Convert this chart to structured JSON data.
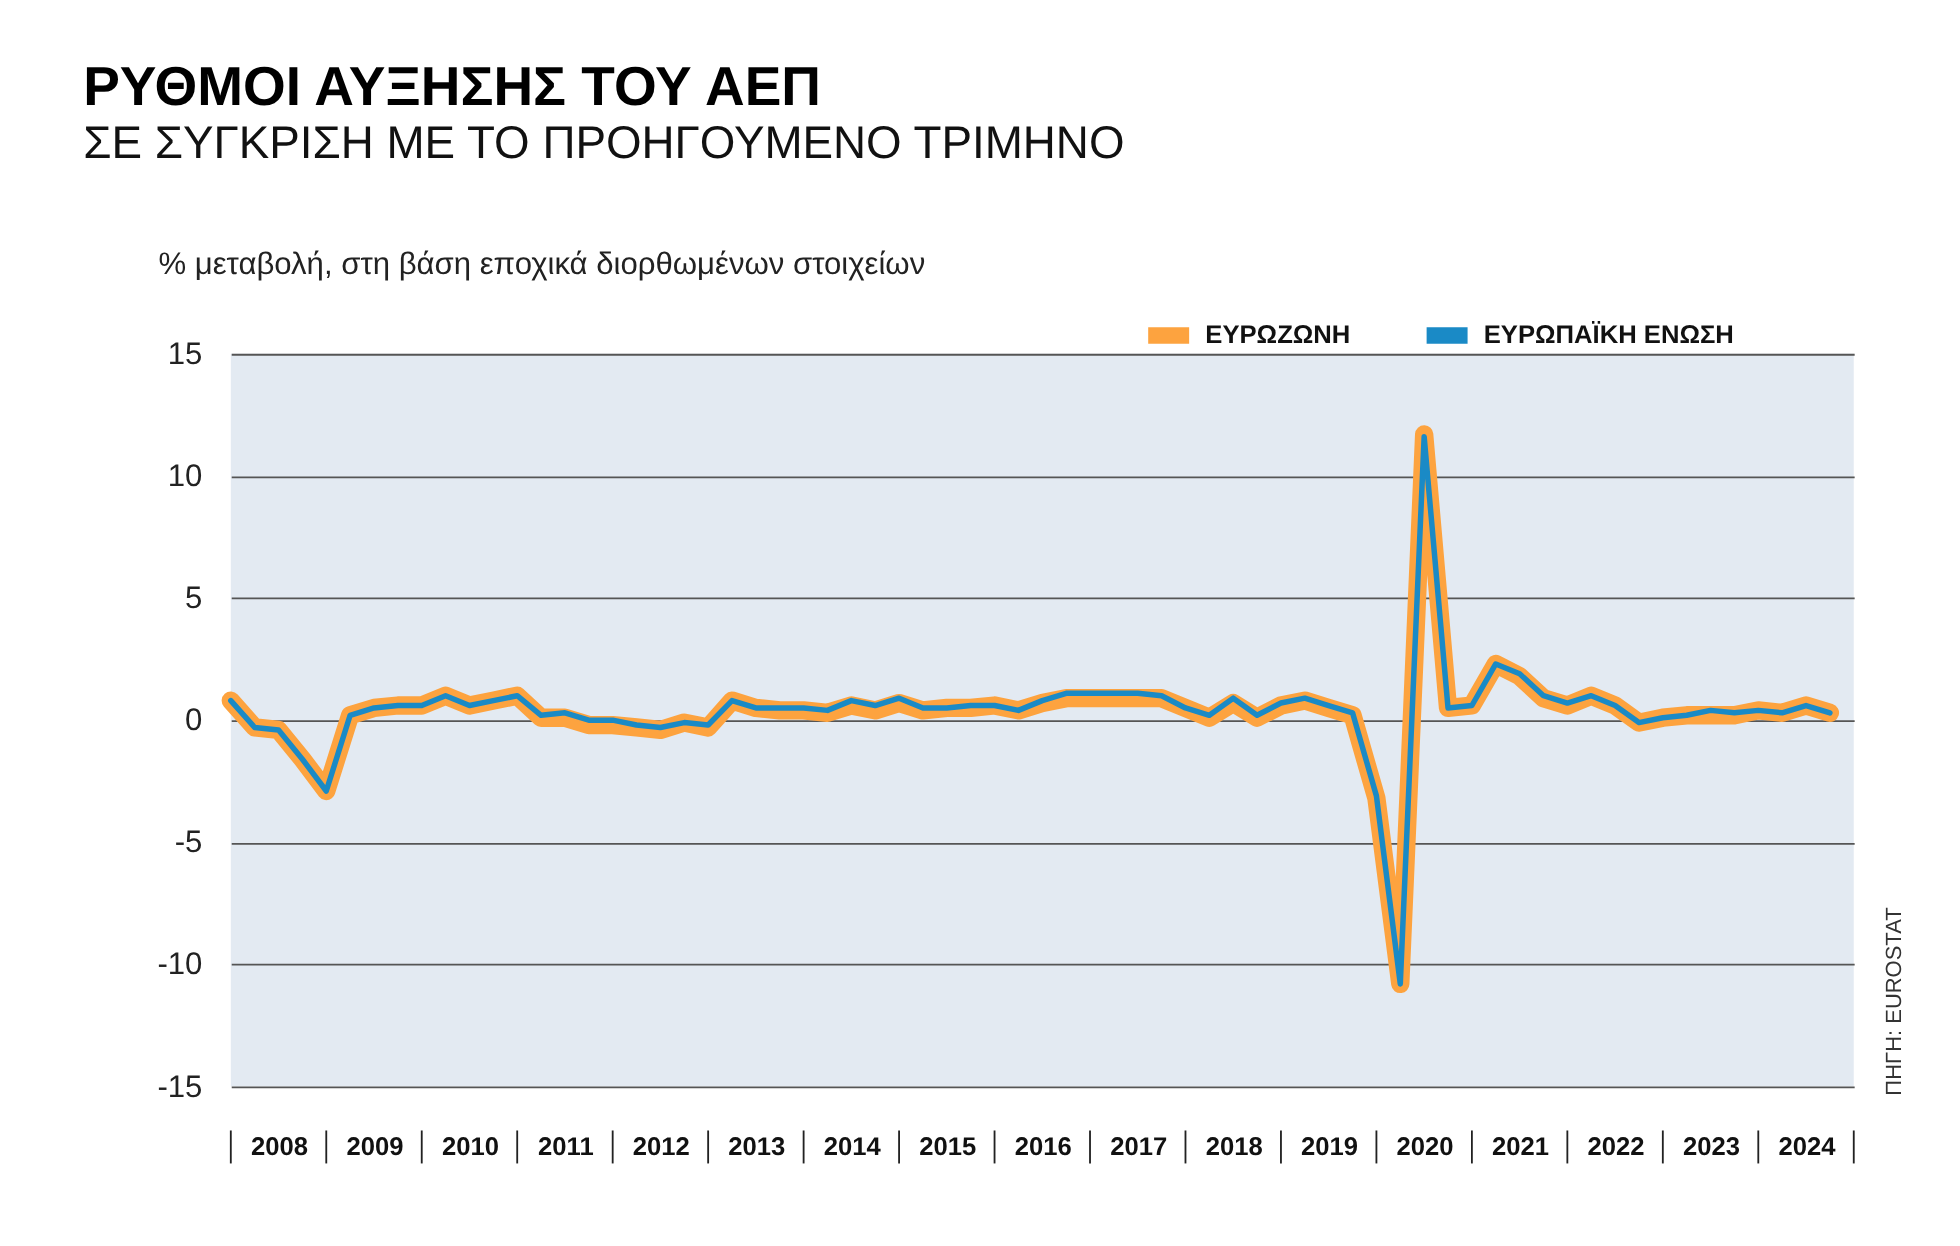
{
  "chart_data": {
    "type": "line",
    "title": "ΡΥΘΜΟΙ ΑΥΞΗΣΗΣ ΤΟΥ ΑΕΠ",
    "subtitle": "ΣΕ ΣΥΓΚΡΙΣΗ ΜΕ ΤΟ ΠΡΟΗΓΟΥΜΕΝΟ ΤΡΙΜΗΝΟ",
    "ylabel": "% μεταβολή, στη βάση εποχικά διορθωμένων στοιχείων",
    "x": [
      "2008-01",
      "2008-04",
      "2008-07",
      "2008-10",
      "2009-01",
      "2009-04",
      "2009-07",
      "2009-10",
      "2010-01",
      "2010-04",
      "2010-07",
      "2010-10",
      "2011-01",
      "2011-04",
      "2011-07",
      "2011-10",
      "2012-01",
      "2012-04",
      "2012-07",
      "2012-10",
      "2013-01",
      "2013-04",
      "2013-07",
      "2013-10",
      "2014-01",
      "2014-04",
      "2014-07",
      "2014-10",
      "2015-01",
      "2015-04",
      "2015-07",
      "2015-10",
      "2016-01",
      "2016-04",
      "2016-07",
      "2016-10",
      "2017-01",
      "2017-04",
      "2017-07",
      "2017-10",
      "2018-01",
      "2018-04",
      "2018-07",
      "2018-10",
      "2019-01",
      "2019-04",
      "2019-07",
      "2019-10",
      "2020-01",
      "2020-04",
      "2020-07",
      "2020-10",
      "2021-01",
      "2021-04",
      "2021-07",
      "2021-10",
      "2022-01",
      "2022-04",
      "2022-07",
      "2022-10",
      "2023-01",
      "2023-04",
      "2023-07",
      "2023-10",
      "2024-01",
      "2024-04",
      "2024-07",
      "2024-10"
    ],
    "series": [
      {
        "name": "ΕΥΡΩΠΑΪΚΗ ΕΝΩΣΗ",
        "color": "#1a8ac6",
        "values": [
          0.8,
          -0.3,
          -0.4,
          -1.6,
          -2.9,
          0.2,
          0.5,
          0.6,
          0.6,
          1.0,
          0.6,
          0.8,
          1.0,
          0.2,
          0.3,
          0.0,
          0.0,
          -0.2,
          -0.3,
          -0.1,
          -0.2,
          0.8,
          0.5,
          0.5,
          0.5,
          0.4,
          0.8,
          0.6,
          0.9,
          0.5,
          0.5,
          0.6,
          0.6,
          0.4,
          0.8,
          1.1,
          1.1,
          1.1,
          1.1,
          1.0,
          0.5,
          0.2,
          0.9,
          0.2,
          0.7,
          0.9,
          0.6,
          0.3,
          -3.1,
          -10.8,
          11.6,
          0.5,
          0.6,
          2.3,
          1.9,
          1.0,
          0.7,
          1.0,
          0.6,
          -0.1,
          0.1,
          0.2,
          0.4,
          0.3,
          0.4,
          0.3,
          0.6,
          0.3
        ]
      },
      {
        "name": "ΕΥΡΩΖΩΝΗ",
        "color": "#fda33f",
        "values": [
          0.8,
          -0.3,
          -0.4,
          -1.6,
          -2.9,
          0.2,
          0.5,
          0.6,
          0.6,
          1.0,
          0.6,
          0.8,
          1.0,
          0.1,
          0.1,
          -0.2,
          -0.2,
          -0.3,
          -0.4,
          -0.1,
          -0.3,
          0.8,
          0.5,
          0.4,
          0.4,
          0.3,
          0.6,
          0.4,
          0.7,
          0.4,
          0.5,
          0.5,
          0.6,
          0.4,
          0.7,
          0.9,
          0.9,
          0.9,
          0.9,
          0.9,
          0.5,
          0.1,
          0.7,
          0.1,
          0.6,
          0.8,
          0.5,
          0.2,
          -3.2,
          -10.8,
          11.7,
          0.5,
          0.6,
          2.3,
          1.8,
          0.9,
          0.6,
          1.0,
          0.6,
          -0.1,
          0.1,
          0.2,
          0.2,
          0.2,
          0.4,
          0.3,
          0.6,
          0.3
        ]
      }
    ],
    "xlim": [
      "2008-01",
      "2025-01"
    ],
    "xticks": [
      {
        "value": "2008-07",
        "label": "2008"
      },
      {
        "value": "2009-07",
        "label": "2009"
      },
      {
        "value": "2010-07",
        "label": "2010"
      },
      {
        "value": "2011-07",
        "label": "2011"
      },
      {
        "value": "2012-07",
        "label": "2012"
      },
      {
        "value": "2013-07",
        "label": "2013"
      },
      {
        "value": "2014-07",
        "label": "2014"
      },
      {
        "value": "2015-07",
        "label": "2015"
      },
      {
        "value": "2016-07",
        "label": "2016"
      },
      {
        "value": "2017-07",
        "label": "2017"
      },
      {
        "value": "2018-07",
        "label": "2018"
      },
      {
        "value": "2019-07",
        "label": "2019"
      },
      {
        "value": "2020-07",
        "label": "2020"
      },
      {
        "value": "2021-07",
        "label": "2021"
      },
      {
        "value": "2022-07",
        "label": "2022"
      },
      {
        "value": "2023-07",
        "label": "2023"
      },
      {
        "value": "2024-07",
        "label": "2024"
      }
    ],
    "ylim": [
      -15,
      15
    ],
    "yticks": [
      -15,
      -10,
      -5,
      0,
      5,
      10,
      15
    ],
    "grid": "y",
    "legend": "top right",
    "marker": "none",
    "line_style": "solid",
    "annotations": [
      "ΠΗΓΗ: EUROSTAT"
    ]
  }
}
